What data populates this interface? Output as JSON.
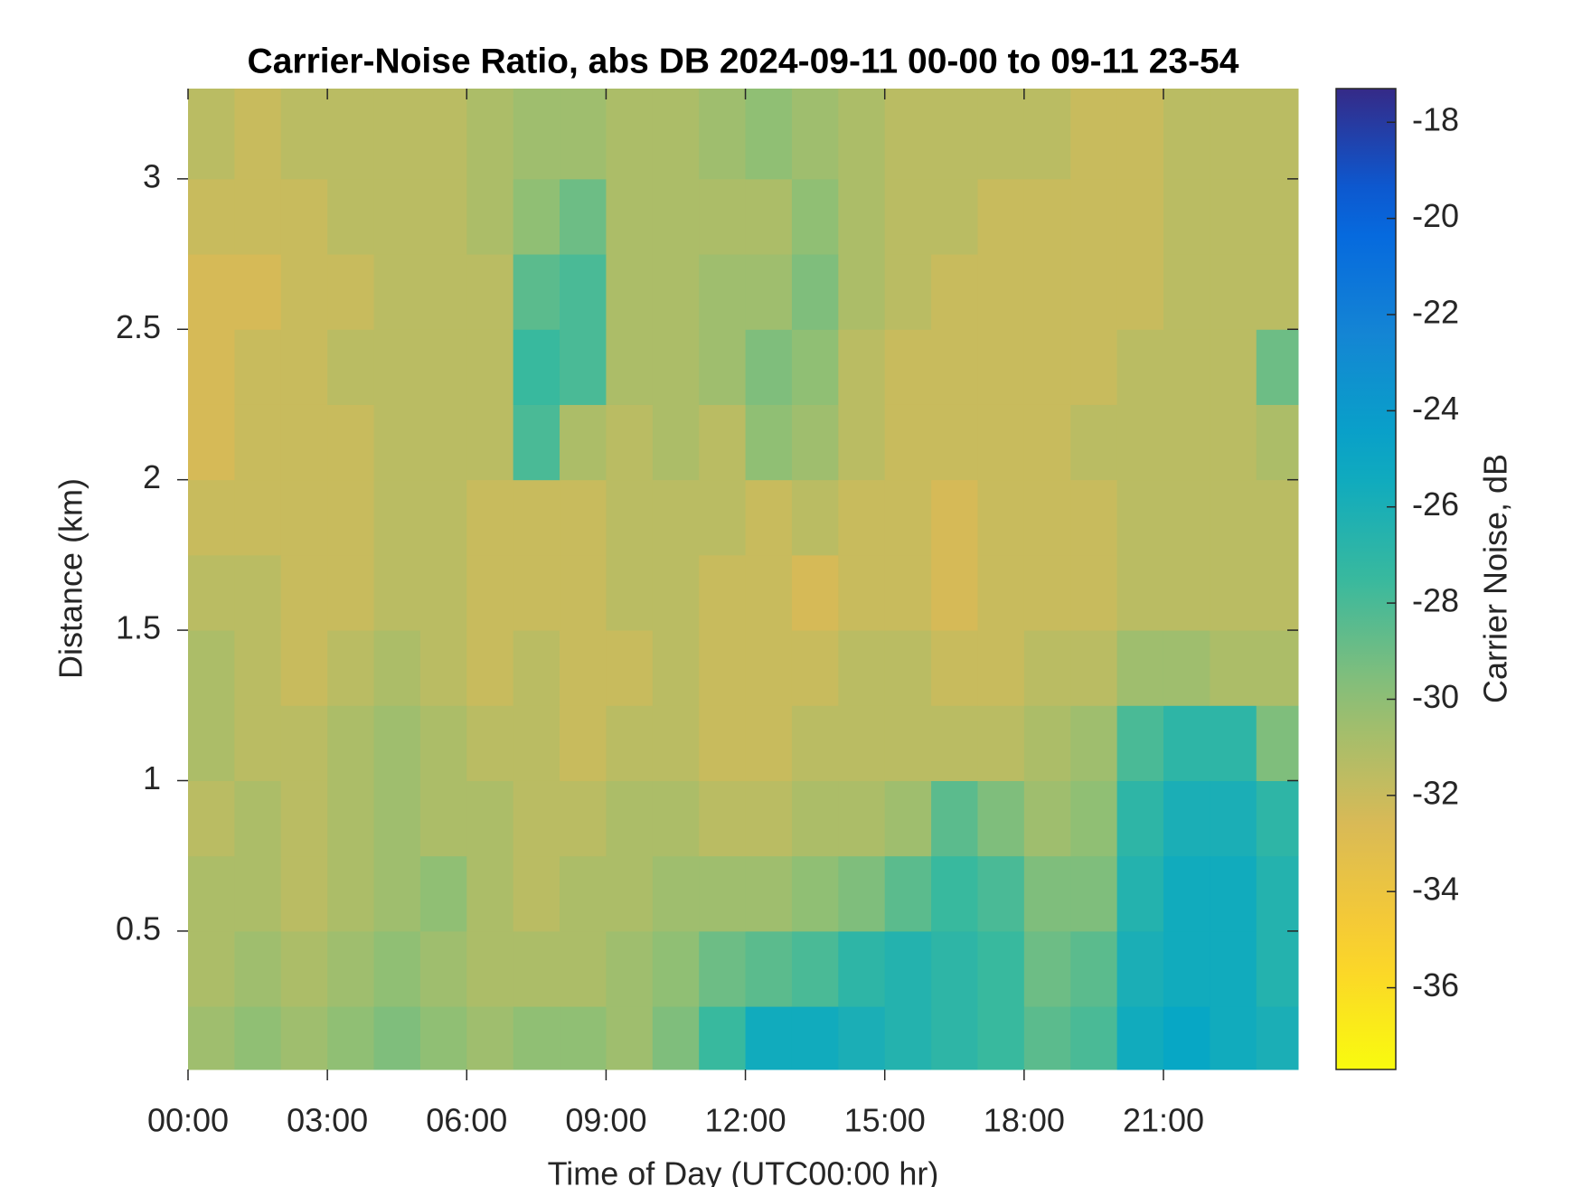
{
  "chart_data": {
    "type": "heatmap",
    "title": "Carrier-Noise Ratio, abs DB 2024-09-11 00-00 to 09-11 23-54",
    "x_label": "Time of Day (UTC00:00 hr)",
    "y_label": "Distance (km)",
    "colorbar_label": "Carrier Noise, dB",
    "colormap": "parula_reversed",
    "x_bins": [
      0,
      1,
      2,
      3,
      4,
      5,
      6,
      7,
      8,
      9,
      10,
      11,
      12,
      13,
      14,
      15,
      16,
      17,
      18,
      19,
      20,
      21,
      22,
      23,
      23.9
    ],
    "y_bins": [
      0.04,
      0.25,
      0.5,
      0.75,
      1.0,
      1.25,
      1.5,
      1.75,
      2.0,
      2.25,
      2.5,
      2.75,
      3.0,
      3.3
    ],
    "values": [
      [
        -30.5,
        -30,
        -30.5,
        -30,
        -29.5,
        -30,
        -30.5,
        -30,
        -30,
        -30.5,
        -29.5,
        -27.5,
        -25.5,
        -25.5,
        -26,
        -26.5,
        -27,
        -27.5,
        -28.5,
        -28,
        -25.5,
        -25,
        -25.5,
        -26
      ],
      [
        -31,
        -30.5,
        -31,
        -30.5,
        -30,
        -30.5,
        -31,
        -31,
        -31,
        -30.5,
        -30,
        -29,
        -28.5,
        -28,
        -27,
        -26.5,
        -27,
        -27.5,
        -29,
        -28.5,
        -26,
        -25.5,
        -25.5,
        -26.5
      ],
      [
        -31,
        -31,
        -31.5,
        -31,
        -30.5,
        -30,
        -31,
        -31.5,
        -31,
        -31,
        -30.5,
        -30.5,
        -30.5,
        -30,
        -29.5,
        -28.5,
        -27.5,
        -28,
        -29.5,
        -29.5,
        -26.5,
        -25.5,
        -25.5,
        -26.5
      ],
      [
        -31.5,
        -31,
        -31.5,
        -31,
        -30.5,
        -31,
        -31,
        -31.5,
        -31.5,
        -31,
        -31,
        -31.5,
        -31.5,
        -31,
        -31,
        -30.5,
        -28.5,
        -29.5,
        -30.5,
        -30,
        -27,
        -26,
        -26,
        -27
      ],
      [
        -31,
        -31.5,
        -31.5,
        -31,
        -30.5,
        -31,
        -31.5,
        -31.5,
        -32,
        -31.5,
        -31.5,
        -32,
        -32,
        -31.5,
        -31.5,
        -31.5,
        -31.5,
        -31.5,
        -31,
        -30.5,
        -28,
        -27,
        -27,
        -29.5
      ],
      [
        -31,
        -31.5,
        -32,
        -31.5,
        -31,
        -31.5,
        -32,
        -31.5,
        -32,
        -32,
        -31.5,
        -32,
        -32,
        -32,
        -31.5,
        -31.5,
        -32,
        -32,
        -31.5,
        -31.5,
        -30.5,
        -30.5,
        -31,
        -31
      ],
      [
        -31.5,
        -31.5,
        -32,
        -32,
        -31.5,
        -31.5,
        -32,
        -32,
        -32,
        -31.5,
        -31.5,
        -32,
        -32,
        -32.5,
        -32,
        -32,
        -32.5,
        -32,
        -32,
        -32,
        -31.5,
        -31.5,
        -31.5,
        -31.5
      ],
      [
        -32,
        -32,
        -32,
        -32,
        -31.5,
        -31.5,
        -32,
        -32,
        -32,
        -31.5,
        -31.5,
        -31.5,
        -32,
        -31.5,
        -32,
        -32,
        -32.5,
        -32,
        -32,
        -32,
        -31.5,
        -31.5,
        -31.5,
        -31.5
      ],
      [
        -32.5,
        -32,
        -32,
        -32,
        -31.5,
        -31.5,
        -31.5,
        -28,
        -31,
        -31.5,
        -31,
        -31.5,
        -30,
        -30.5,
        -31.5,
        -32,
        -32,
        -32,
        -32,
        -31.5,
        -31.5,
        -31.5,
        -31.5,
        -31
      ],
      [
        -32.5,
        -32,
        -32,
        -31.5,
        -31.5,
        -31.5,
        -31.5,
        -27.5,
        -28,
        -31,
        -31,
        -30.5,
        -29.5,
        -30,
        -31.5,
        -32,
        -32,
        -32,
        -32,
        -32,
        -31.5,
        -31.5,
        -31.5,
        -29
      ],
      [
        -32.5,
        -32.5,
        -32,
        -32,
        -31.5,
        -31.5,
        -31.5,
        -28.5,
        -28,
        -31,
        -31,
        -30.5,
        -30.5,
        -29.5,
        -31,
        -31.5,
        -32,
        -32,
        -32,
        -32,
        -32,
        -31.5,
        -31.5,
        -31.5
      ],
      [
        -32,
        -32,
        -32,
        -31.5,
        -31.5,
        -31.5,
        -31,
        -30,
        -29,
        -31,
        -31,
        -31,
        -31,
        -30,
        -31,
        -31.5,
        -31.5,
        -32,
        -32,
        -32,
        -32,
        -31.5,
        -31.5,
        -31.5
      ],
      [
        -31.5,
        -32,
        -31.5,
        -31.5,
        -31.5,
        -31.5,
        -31,
        -30.5,
        -30.5,
        -31,
        -31,
        -30.5,
        -30,
        -30.5,
        -31,
        -31.5,
        -31.5,
        -31.5,
        -31.5,
        -32,
        -32,
        -31.5,
        -31.5,
        -31.5
      ]
    ],
    "xlim": [
      0,
      23.9
    ],
    "xticks": [
      {
        "value": 0,
        "label": "00:00"
      },
      {
        "value": 3,
        "label": "03:00"
      },
      {
        "value": 6,
        "label": "06:00"
      },
      {
        "value": 9,
        "label": "09:00"
      },
      {
        "value": 12,
        "label": "12:00"
      },
      {
        "value": 15,
        "label": "15:00"
      },
      {
        "value": 18,
        "label": "18:00"
      },
      {
        "value": 21,
        "label": "21:00"
      }
    ],
    "ylim": [
      0.04,
      3.3
    ],
    "yticks": [
      0.5,
      1,
      1.5,
      2,
      2.5,
      3
    ],
    "clim": [
      -37.7,
      -17.3
    ],
    "cticks": [
      -36,
      -34,
      -32,
      -30,
      -28,
      -26,
      -24,
      -22,
      -20,
      -18
    ]
  }
}
